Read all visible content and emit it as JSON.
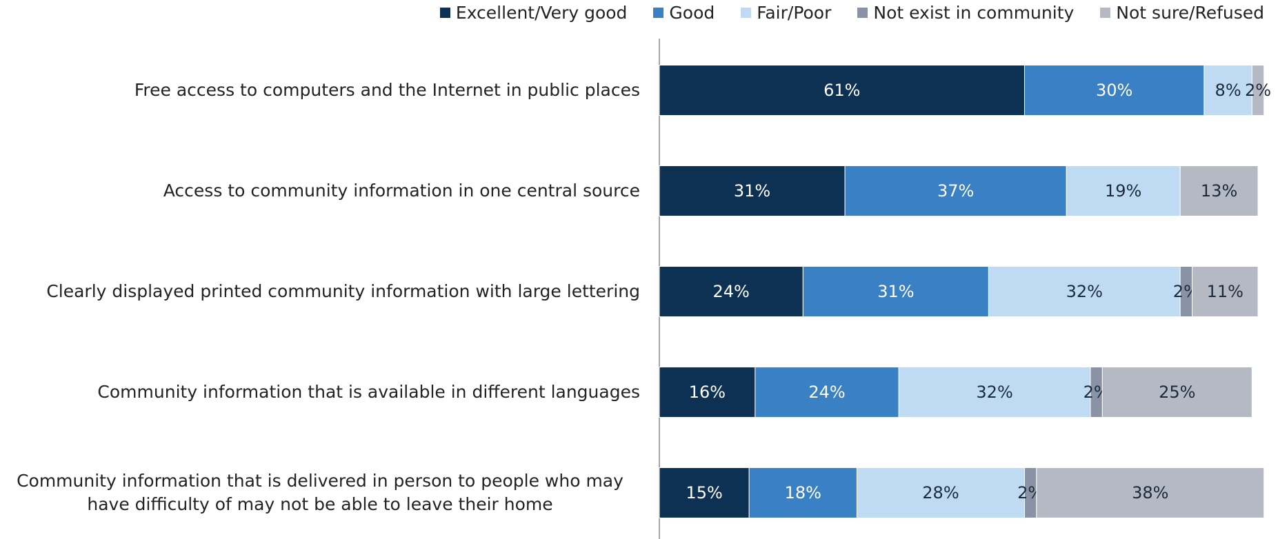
{
  "chart_data": {
    "type": "stacked_bar_horizontal",
    "categories": [
      "Free access to computers and the Internet in public places",
      "Access to community information in one central source",
      "Clearly displayed printed community information with large lettering",
      "Community information that is available in different languages",
      "Community information that is delivered in person to people who may have difficulty of may not be able to leave their home"
    ],
    "xlim": [
      0,
      100
    ],
    "legend": "top-right",
    "series": [
      {
        "name": "Excellent/Very good",
        "color": "#0d3152",
        "label_color": "#ffffff",
        "values": [
          61,
          31,
          24,
          16,
          15
        ],
        "value_labels": [
          "61%",
          "31%",
          "24%",
          "16%",
          "15%"
        ]
      },
      {
        "name": "Good",
        "color": "#3a80c5",
        "label_color": "#ffffff",
        "values": [
          30,
          37,
          31,
          24,
          18
        ],
        "value_labels": [
          "30%",
          "37%",
          "31%",
          "24%",
          "18%"
        ]
      },
      {
        "name": "Fair/Poor",
        "color": "#bfdbf3",
        "label_color": "#1a2a3a",
        "values": [
          8,
          19,
          32,
          32,
          28
        ],
        "value_labels": [
          "8%",
          "19%",
          "32%",
          "32%",
          "28%"
        ]
      },
      {
        "name": "Not exist in community",
        "color": "#8a93a6",
        "label_color": "#1a2a3a",
        "values": [
          null,
          null,
          2,
          2,
          2
        ],
        "value_labels": [
          null,
          null,
          "2%",
          "2%",
          "2%"
        ]
      },
      {
        "name": "Not sure/Refused",
        "color": "#b5b9c3",
        "label_color": "#1a2a3a",
        "values": [
          2,
          13,
          11,
          25,
          38
        ],
        "value_labels": [
          "2%",
          "13%",
          "11%",
          "25%",
          "38%"
        ]
      }
    ]
  }
}
